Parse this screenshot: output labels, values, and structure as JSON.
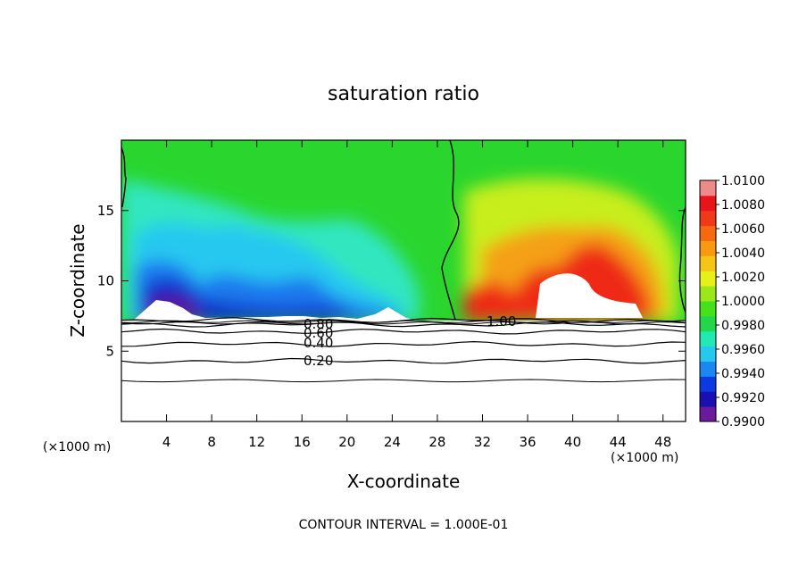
{
  "chart_data": {
    "type": "heatmap",
    "title": "saturation ratio",
    "xlabel": "X-coordinate",
    "ylabel": "Z-coordinate",
    "x_unit_left": "(×1000 m)",
    "x_unit_right": "(×1000 m)",
    "xlim": [
      0,
      50
    ],
    "ylim": [
      0,
      20
    ],
    "x_ticks": [
      4,
      8,
      12,
      16,
      20,
      24,
      28,
      32,
      36,
      40,
      44,
      48
    ],
    "y_ticks": [
      5,
      10,
      15
    ],
    "footer": "CONTOUR INTERVAL = 1.000E-01",
    "colorbar": {
      "labels": [
        "1.0100",
        "1.0080",
        "1.0060",
        "1.0040",
        "1.0020",
        "1.0000",
        "0.9980",
        "0.9960",
        "0.9940",
        "0.9920",
        "0.9900"
      ],
      "min": 0.99,
      "max": 1.01,
      "colors": [
        "#6a1a9a",
        "#1a0fb0",
        "#0a3ae0",
        "#1a88f0",
        "#27c8ee",
        "#22e8b4",
        "#22d84a",
        "#44e21a",
        "#9ae81a",
        "#e8f01a",
        "#f4c416",
        "#f79a12",
        "#f56a0e",
        "#ee3a1a",
        "#e8141a",
        "#f08a8a"
      ]
    },
    "contour_labels": [
      "0.20",
      "0.40",
      "0.60",
      "0.80",
      "1.00"
    ],
    "contours_below": [
      {
        "level": 0.2,
        "z": 4.3
      },
      {
        "level": 0.4,
        "z": 5.5
      },
      {
        "level": 0.6,
        "z": 6.4
      },
      {
        "level": 0.8,
        "z": 6.9
      },
      {
        "level": 0.9,
        "z": 7.2
      }
    ]
  }
}
